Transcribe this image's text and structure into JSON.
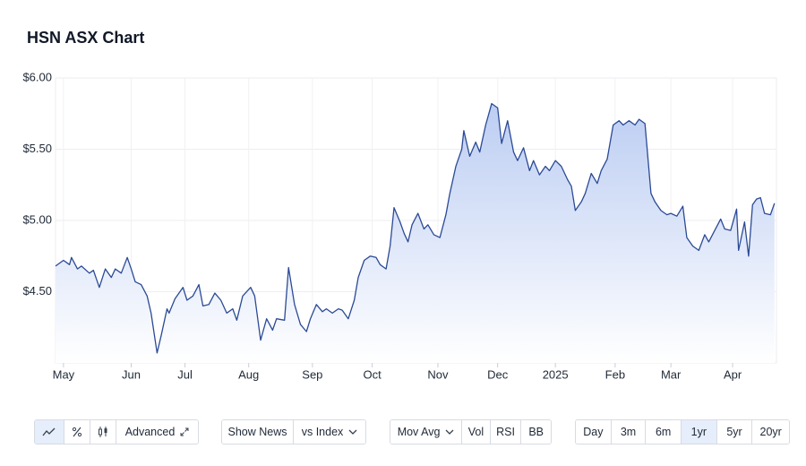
{
  "title": "HSN ASX Chart",
  "chart_data": {
    "type": "line",
    "color": "#2b4a95",
    "grid": true,
    "xlim": [
      0,
      362
    ],
    "ylim": [
      4.0,
      6.0
    ],
    "xticks": [
      {
        "value": 4,
        "label": "May"
      },
      {
        "value": 38,
        "label": "Jun"
      },
      {
        "value": 65,
        "label": "Jul"
      },
      {
        "value": 97,
        "label": "Aug"
      },
      {
        "value": 129,
        "label": "Sep"
      },
      {
        "value": 159,
        "label": "Oct"
      },
      {
        "value": 192,
        "label": "Nov"
      },
      {
        "value": 222,
        "label": "Dec"
      },
      {
        "value": 251,
        "label": "2025"
      },
      {
        "value": 281,
        "label": "Feb"
      },
      {
        "value": 309,
        "label": "Mar"
      },
      {
        "value": 340,
        "label": "Apr"
      }
    ],
    "yticks": [
      {
        "value": 4.5,
        "label": "$4.50"
      },
      {
        "value": 5.0,
        "label": "$5.00"
      },
      {
        "value": 5.5,
        "label": "$5.50"
      },
      {
        "value": 6.0,
        "label": "$6.00"
      }
    ],
    "x": [
      0,
      4,
      7,
      8,
      11,
      13,
      17,
      19,
      22,
      25,
      28,
      30,
      33,
      36,
      38,
      40,
      43,
      46,
      48,
      51,
      53,
      56,
      57,
      60,
      64,
      66,
      69,
      72,
      74,
      77,
      80,
      83,
      86,
      89,
      91,
      94,
      98,
      100,
      103,
      106,
      109,
      111,
      115,
      117,
      120,
      123,
      126,
      128,
      131,
      134,
      136,
      139,
      142,
      144,
      147,
      150,
      152,
      155,
      158,
      161,
      163,
      166,
      168,
      170,
      173,
      175,
      177,
      179,
      182,
      185,
      187,
      190,
      193,
      196,
      198,
      201,
      204,
      205,
      208,
      211,
      213,
      216,
      219,
      222,
      224,
      227,
      230,
      232,
      235,
      238,
      240,
      243,
      246,
      248,
      251,
      254,
      257,
      259,
      261,
      264,
      266,
      269,
      272,
      274,
      277,
      280,
      283,
      285,
      288,
      291,
      293,
      296,
      299,
      301,
      304,
      307,
      309,
      312,
      315,
      317,
      320,
      323,
      326,
      328,
      331,
      334,
      336,
      339,
      342,
      343,
      346,
      348,
      350,
      352,
      354,
      356,
      359,
      361
    ],
    "values": [
      4.68,
      4.72,
      4.69,
      4.74,
      4.66,
      4.68,
      4.63,
      4.65,
      4.53,
      4.66,
      4.6,
      4.66,
      4.63,
      4.74,
      4.66,
      4.57,
      4.55,
      4.47,
      4.35,
      4.07,
      4.19,
      4.38,
      4.35,
      4.45,
      4.53,
      4.44,
      4.47,
      4.55,
      4.4,
      4.41,
      4.49,
      4.44,
      4.35,
      4.38,
      4.3,
      4.47,
      4.53,
      4.47,
      4.16,
      4.31,
      4.23,
      4.31,
      4.3,
      4.67,
      4.41,
      4.27,
      4.22,
      4.31,
      4.41,
      4.36,
      4.38,
      4.35,
      4.38,
      4.37,
      4.31,
      4.44,
      4.6,
      4.72,
      4.75,
      4.74,
      4.69,
      4.66,
      4.82,
      5.09,
      4.99,
      4.91,
      4.85,
      4.97,
      5.05,
      4.94,
      4.97,
      4.9,
      4.88,
      5.04,
      5.19,
      5.38,
      5.5,
      5.63,
      5.45,
      5.55,
      5.48,
      5.67,
      5.82,
      5.79,
      5.54,
      5.7,
      5.48,
      5.42,
      5.51,
      5.35,
      5.42,
      5.32,
      5.38,
      5.35,
      5.42,
      5.38,
      5.29,
      5.24,
      5.07,
      5.13,
      5.19,
      5.33,
      5.26,
      5.35,
      5.43,
      5.67,
      5.7,
      5.67,
      5.7,
      5.67,
      5.71,
      5.68,
      5.19,
      5.13,
      5.07,
      5.04,
      5.05,
      5.03,
      5.1,
      4.88,
      4.82,
      4.79,
      4.9,
      4.85,
      4.93,
      5.01,
      4.94,
      4.93,
      5.08,
      4.79,
      4.99,
      4.75,
      5.11,
      5.15,
      5.16,
      5.05,
      5.04,
      5.12
    ]
  },
  "toolbar": {
    "advanced": "Advanced",
    "show_news": "Show News",
    "vs_index": "vs Index",
    "mov_avg": "Mov Avg",
    "vol": "Vol",
    "rsi": "RSI",
    "bb": "BB",
    "ranges": [
      "Day",
      "3m",
      "6m",
      "1yr",
      "5yr",
      "20yr"
    ]
  }
}
